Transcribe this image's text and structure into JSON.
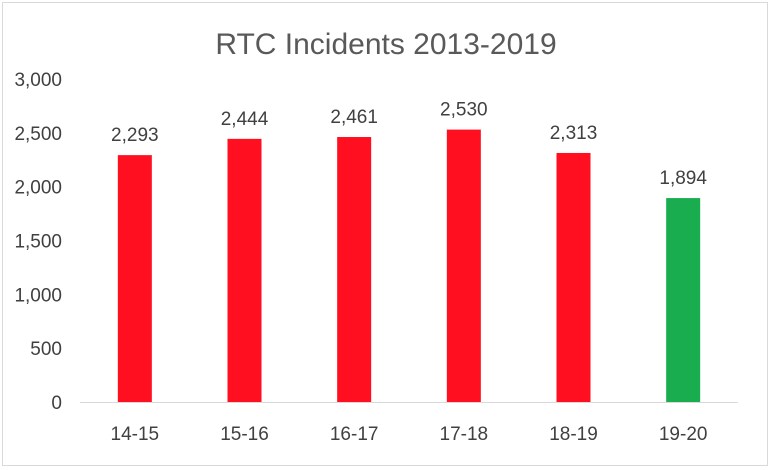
{
  "chart_data": {
    "type": "bar",
    "title": "RTC Incidents 2013-2019",
    "categories": [
      "14-15",
      "15-16",
      "16-17",
      "17-18",
      "18-19",
      "19-20"
    ],
    "values": [
      2293,
      2444,
      2461,
      2530,
      2313,
      1894
    ],
    "value_labels": [
      "2,293",
      "2,444",
      "2,461",
      "2,530",
      "2,313",
      "1,894"
    ],
    "bar_colors": [
      "#ff0f1f",
      "#ff0f1f",
      "#ff0f1f",
      "#ff0f1f",
      "#ff0f1f",
      "#19ad4f"
    ],
    "y_ticks": [
      0,
      500,
      1000,
      1500,
      2000,
      2500,
      3000
    ],
    "y_tick_labels": [
      "0",
      "500",
      "1,000",
      "1,500",
      "2,000",
      "2,500",
      "3,000"
    ],
    "ylim": [
      0,
      3000
    ],
    "xlabel": "",
    "ylabel": "",
    "grid": false,
    "legend": "none"
  }
}
